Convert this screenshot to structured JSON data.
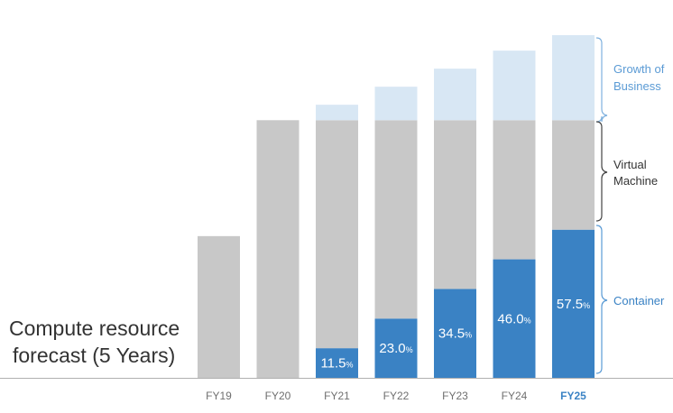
{
  "chart_data": {
    "type": "bar",
    "stacked": true,
    "title_lines": [
      "Compute resource",
      "forecast (5 Years)"
    ],
    "categories": [
      "FY19",
      "FY20",
      "FY21",
      "FY22",
      "FY23",
      "FY24",
      "FY25"
    ],
    "highlight_category": "FY25",
    "series": [
      {
        "name": "Container",
        "color": "#3a82c4",
        "values": [
          0,
          0,
          11.5,
          23.0,
          34.5,
          46.0,
          57.5
        ]
      },
      {
        "name": "Virtual Machine",
        "color": "#c8c8c8",
        "values": [
          55,
          100,
          88.5,
          77.0,
          65.5,
          54.0,
          42.5
        ]
      },
      {
        "name": "Growth of Business",
        "color": "#d8e7f4",
        "values": [
          0,
          0,
          6,
          13,
          20,
          27,
          33
        ]
      }
    ],
    "data_labels": [
      "",
      "",
      "11.5",
      "23.0",
      "34.5",
      "46.0",
      "57.5"
    ],
    "data_label_unit": "%",
    "legend_lines": {
      "growth": [
        "Growth of",
        "Business"
      ],
      "vm": [
        "Virtual",
        "Machine"
      ],
      "container": [
        "Container"
      ]
    },
    "legend_colors": {
      "growth": "#5b9bd5",
      "vm": "#333333",
      "container": "#3a82c4"
    },
    "ylim": [
      0,
      133
    ],
    "grid": false,
    "legend_placement": "right"
  }
}
